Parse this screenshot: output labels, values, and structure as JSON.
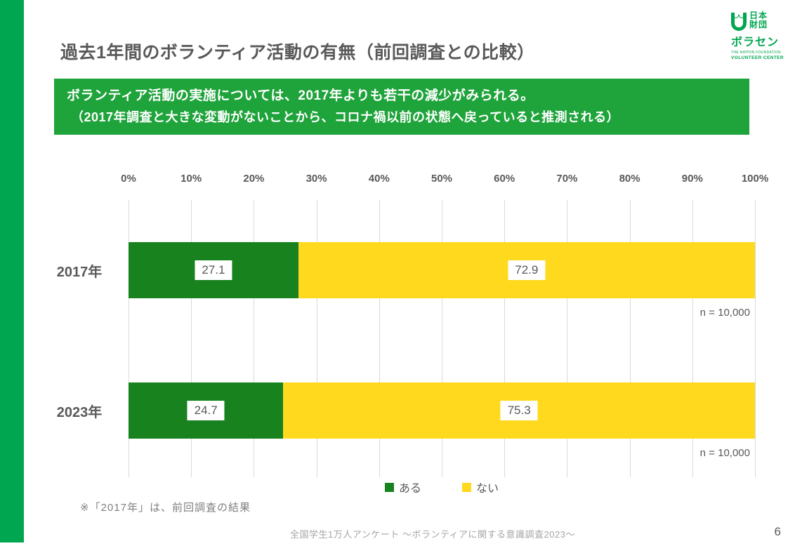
{
  "slide": {
    "title": "過去1年間のボランティア活動の有無（前回調査との比較）",
    "page_number": "6",
    "footer_text": "全国学生1万人アンケート ～ボランティアに関する意識調査2023～",
    "footnote": "※「2017年」は、前回調査の結果"
  },
  "logo": {
    "kanji_top": "日本",
    "kanji_bottom": "財団",
    "katakana": "ボラセン",
    "english_line1": "THE NIPPON FOUNDATION",
    "english_line2": "VOLUNTEER CENTER"
  },
  "banner": {
    "line1": "ボランティア活動の実施については、2017年よりも若干の減少がみられる。",
    "line2": "（2017年調査と大きな変動がないことから、コロナ禍以前の状態へ戻っていると推測される）"
  },
  "chart_data": {
    "type": "bar",
    "orientation": "horizontal",
    "stacked": true,
    "categories": [
      "2017年",
      "2023年"
    ],
    "series": [
      {
        "name": "ある",
        "color": "#17821E",
        "values": [
          27.1,
          24.7
        ]
      },
      {
        "name": "ない",
        "color": "#FFD91E",
        "values": [
          72.9,
          75.3
        ]
      }
    ],
    "x_tick_labels": [
      "0%",
      "10%",
      "20%",
      "30%",
      "40%",
      "50%",
      "60%",
      "70%",
      "80%",
      "90%",
      "100%"
    ],
    "xlim": [
      0,
      100
    ],
    "sample_labels": [
      "n = 10,000",
      "n = 10,000"
    ],
    "legend": [
      "ある",
      "ない"
    ],
    "legend_position": "bottom-center",
    "grid": true
  },
  "colors": {
    "accent_strip": "#00A650",
    "banner_bg": "#1FA33B",
    "text_dark": "#595959",
    "text_muted": "#7F7F7F",
    "footer_gray": "#A6A6A6",
    "gridline": "#D9D9D9"
  }
}
